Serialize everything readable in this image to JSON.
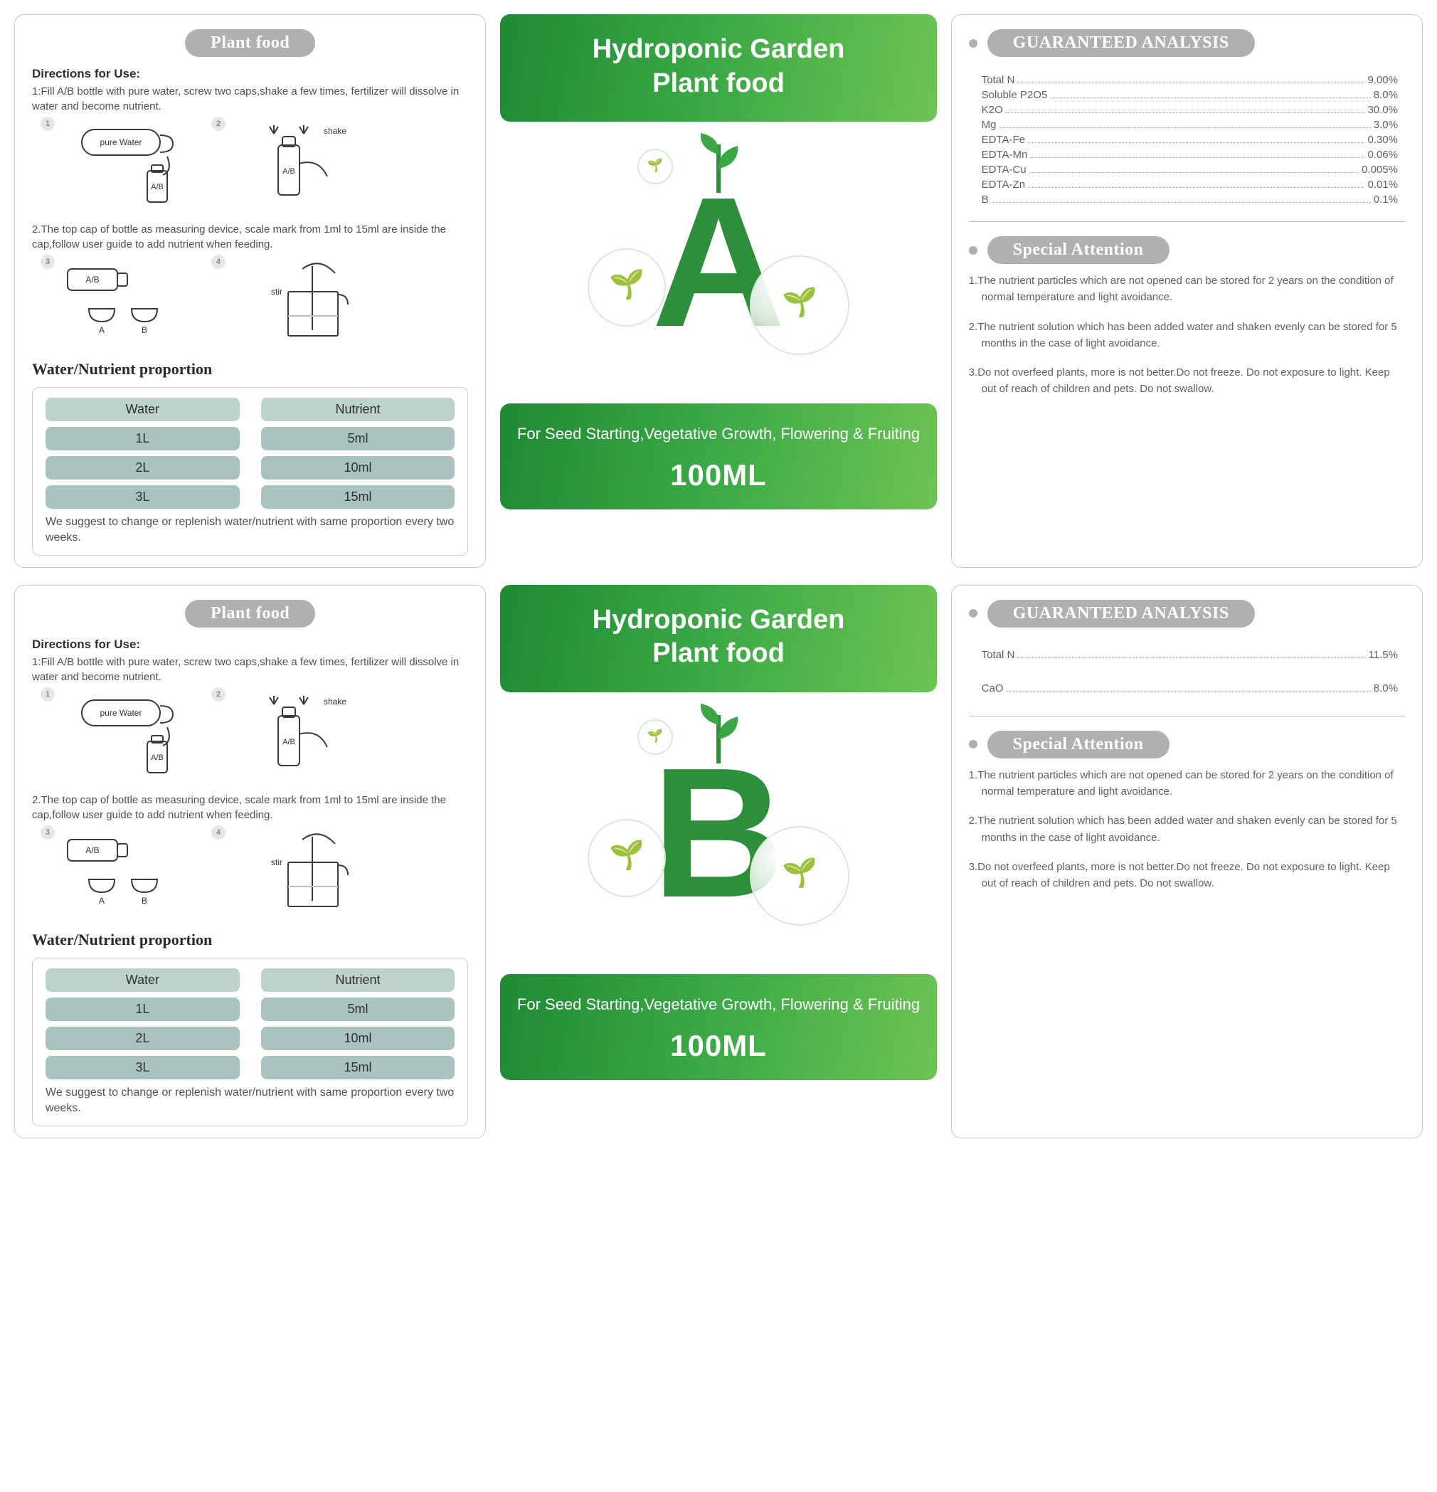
{
  "common": {
    "left": {
      "badge": "Plant food",
      "directions_header": "Directions for Use:",
      "dir1": "1:Fill A/B bottle with pure water, screw two caps,shake a few times, fertilizer will dissolve in water and become nutrient.",
      "dir2": "2.The top cap of bottle as measuring device, scale mark from 1ml to 15ml are inside the cap,follow user guide to add nutrient when feeding.",
      "step_labels": {
        "pure_water": "pure Water",
        "ab": "A/B",
        "shake": "shake",
        "stir": "stir",
        "cupA": "A",
        "cupB": "B"
      },
      "prop_header": "Water/Nutrient proportion",
      "table_bg_header": "#bdd1cd",
      "table_bg_cell": "#a9c3bf",
      "columns": [
        "Water",
        "Nutrient"
      ],
      "rows": [
        [
          "1L",
          "5ml"
        ],
        [
          "2L",
          "10ml"
        ],
        [
          "3L",
          "15ml"
        ]
      ],
      "footnote": "We suggest to change or replenish water/nutrient with same proportion every two weeks."
    },
    "center": {
      "title_line1": "Hydroponic Garden",
      "title_line2": "Plant food",
      "tagline": "For Seed Starting,Vegetative Growth, Flowering & Fruiting",
      "volume": "100ML",
      "green_from": "#1f8a33",
      "green_to": "#6dc453",
      "letter_color": "#2e8f3b"
    },
    "right": {
      "ga_badge": "GUARANTEED ANALYSIS",
      "sa_badge": "Special Attention",
      "attention": [
        "1.The nutrient particles which are not opened can be stored for 2 years on the condition of normal temperature and light avoidance.",
        "2.The nutrient solution which has been added water and shaken evenly can be stored for 5 months in the case of light avoidance.",
        "3.Do not overfeed plants, more is not better.Do not freeze. Do not exposure to light. Keep out of reach of children and pets. Do not swallow."
      ]
    }
  },
  "products": [
    {
      "letter": "A",
      "analysis": [
        {
          "label": "Total N ",
          "value": "9.00%"
        },
        {
          "label": "Soluble P2O5",
          "value": "8.0%"
        },
        {
          "label": "K2O",
          "value": "30.0%"
        },
        {
          "label": "Mg",
          "value": "3.0%"
        },
        {
          "label": "EDTA-Fe",
          "value": "0.30%"
        },
        {
          "label": "EDTA-Mn",
          "value": "0.06%"
        },
        {
          "label": "EDTA-Cu",
          "value": "0.005%"
        },
        {
          "label": "EDTA-Zn",
          "value": "0.01%"
        },
        {
          "label": "B",
          "value": "0.1%"
        }
      ]
    },
    {
      "letter": "B",
      "analysis": [
        {
          "label": "Total N ",
          "value": "11.5%"
        },
        {
          "label": "CaO",
          "value": "8.0%"
        }
      ],
      "analysis_spacing": "loose"
    }
  ]
}
